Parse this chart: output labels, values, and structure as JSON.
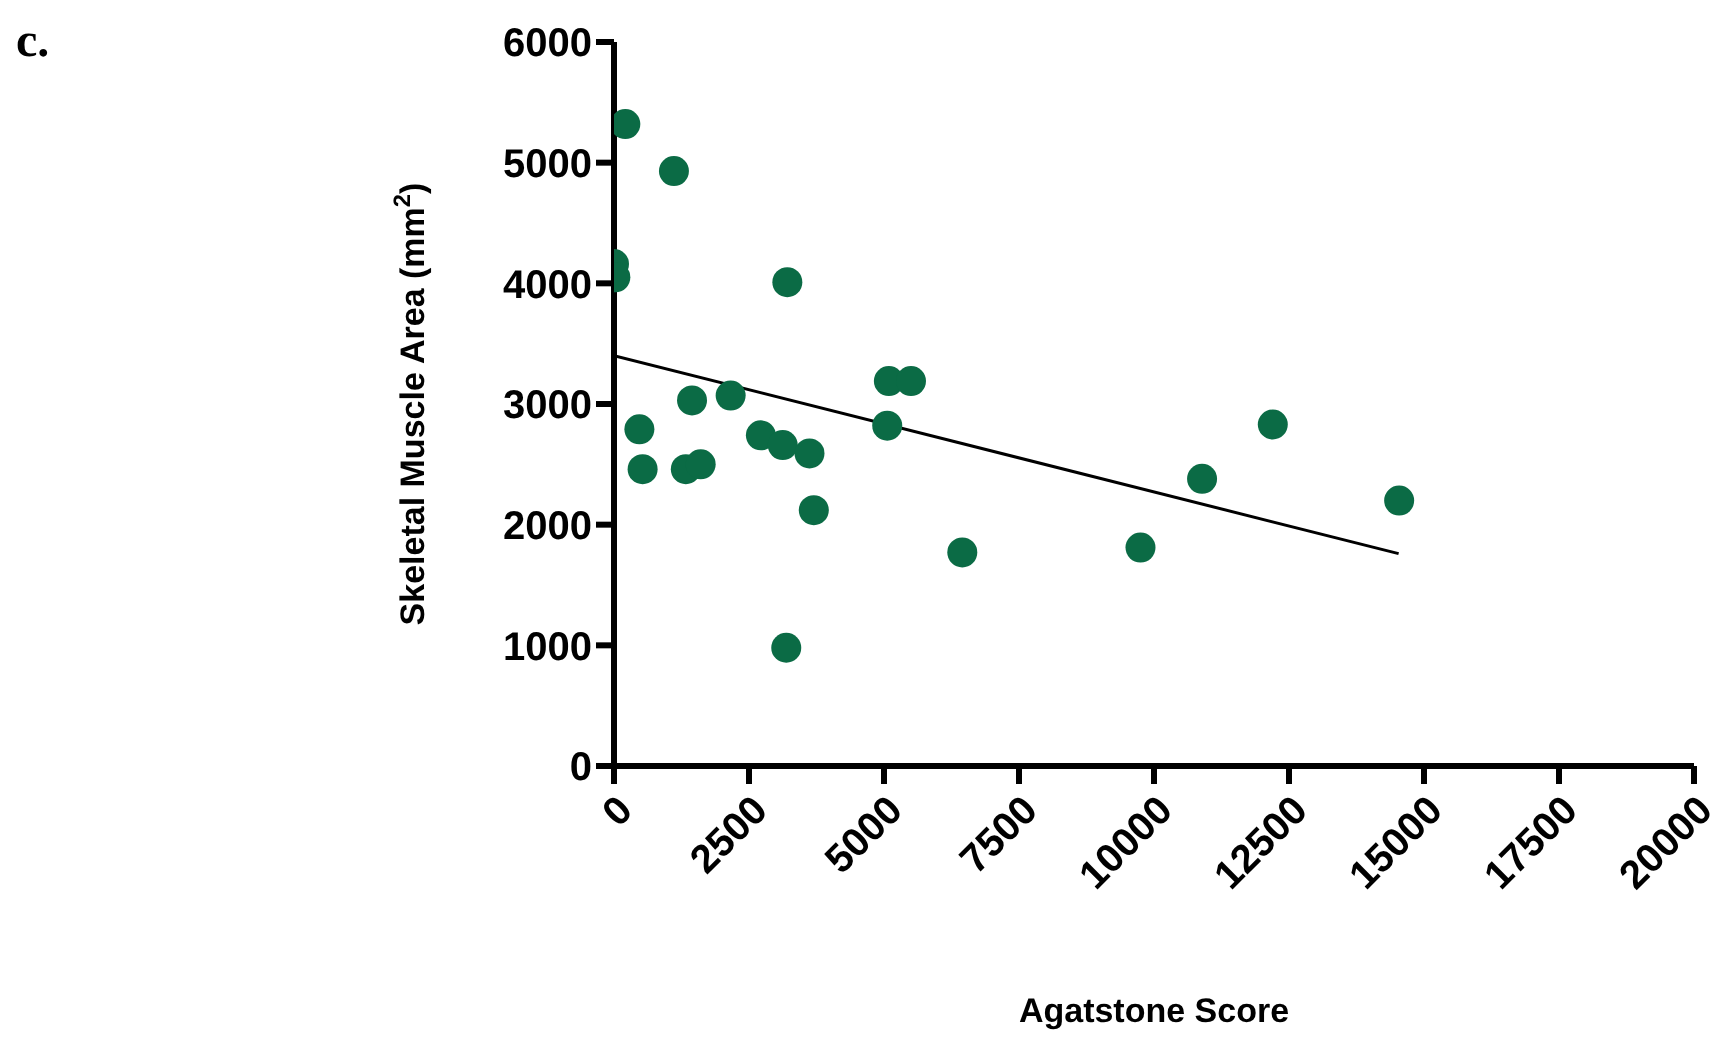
{
  "chart_data": {
    "type": "scatter",
    "title": "c.",
    "xlabel": "Agatstone Score",
    "ylabel": "Skeletal Muscle Area (mm$^{2}$)",
    "xlim": [
      0,
      20000
    ],
    "xticks": [
      0,
      2500,
      5000,
      7500,
      10000,
      12500,
      15000,
      17500,
      20000
    ],
    "ylim": [
      0,
      6000
    ],
    "yticks": [
      0,
      1000,
      2000,
      3000,
      4000,
      5000,
      6000
    ],
    "series": [
      {
        "marker": "circle",
        "color": "#0b6b45",
        "x": [
          210,
          1110,
          0,
          25,
          3210,
          470,
          530,
          1445,
          1330,
          1605,
          2160,
          2720,
          3125,
          3620,
          3700,
          3190,
          5090,
          5500,
          5060,
          6450,
          9750,
          10890,
          12200,
          14540
        ],
        "values": [
          5320,
          4930,
          4160,
          4050,
          4010,
          2790,
          2460,
          3030,
          2460,
          2500,
          3070,
          2740,
          2660,
          2590,
          2120,
          980,
          3190,
          3190,
          2820,
          1770,
          1810,
          2380,
          2830,
          2200
        ]
      },
      {
        "type": "line",
        "color": "#000000",
        "x": [
          0,
          14530
        ],
        "values": [
          3400,
          1760
        ]
      }
    ]
  }
}
